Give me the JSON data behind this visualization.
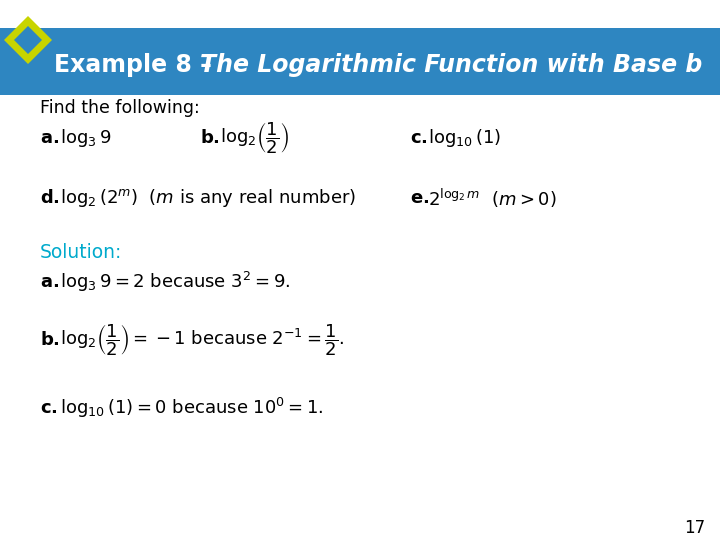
{
  "bg_color": "#2e86c1",
  "diamond_outer": "#c8d400",
  "diamond_inner": "#2e86c1",
  "title_color": "#ffffff",
  "solution_color": "#00aacc",
  "body_bg": "#ffffff",
  "page_number": "17",
  "title_normal": "Example 8 – ",
  "title_italic": "The Logarithmic Function with Base b"
}
